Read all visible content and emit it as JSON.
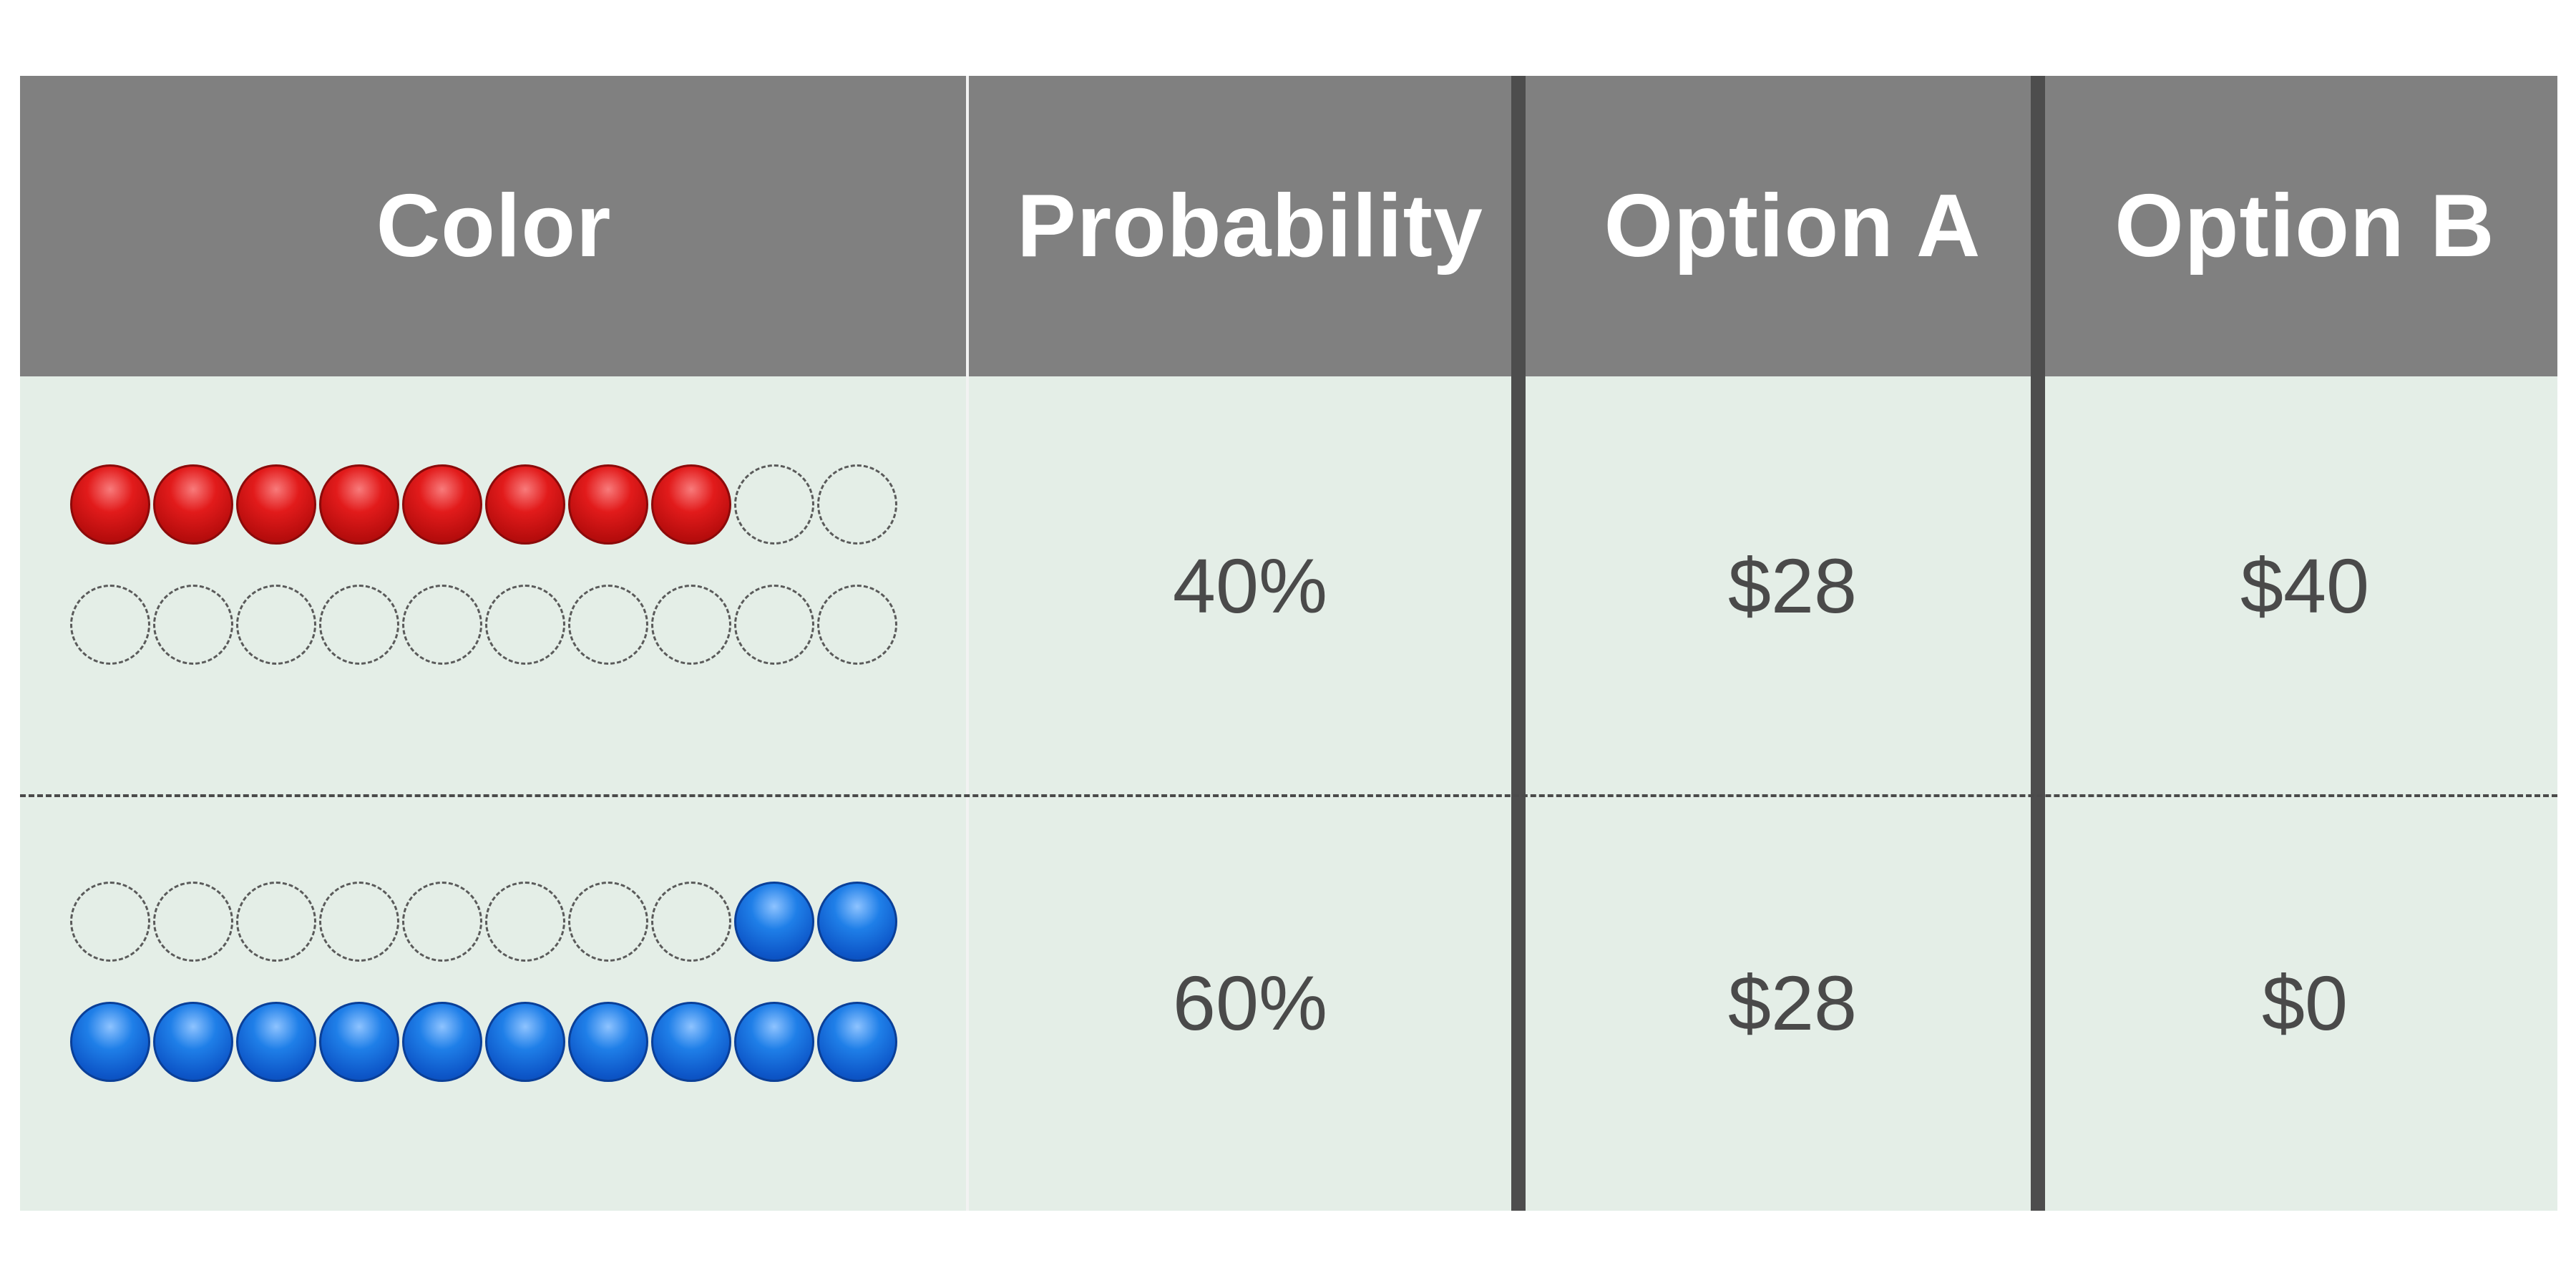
{
  "table": {
    "headers": [
      "Color",
      "Probability",
      "Option A",
      "Option B"
    ],
    "rows": [
      {
        "balls_row1": [
          "red",
          "red",
          "red",
          "red",
          "red",
          "red",
          "red",
          "red",
          "empty",
          "empty"
        ],
        "balls_row2": [
          "empty",
          "empty",
          "empty",
          "empty",
          "empty",
          "empty",
          "empty",
          "empty",
          "empty",
          "empty"
        ],
        "probability": "40%",
        "option_a": "$28",
        "option_b": "$40"
      },
      {
        "balls_row1": [
          "empty",
          "empty",
          "empty",
          "empty",
          "empty",
          "empty",
          "empty",
          "empty",
          "blue",
          "blue"
        ],
        "balls_row2": [
          "blue",
          "blue",
          "blue",
          "blue",
          "blue",
          "blue",
          "blue",
          "blue",
          "blue",
          "blue"
        ],
        "probability": "60%",
        "option_a": "$28",
        "option_b": "$0"
      }
    ]
  },
  "colors": {
    "header_bg": "#808080",
    "cell_bg": "#e4eee7",
    "red_ball": "#e21b1b",
    "blue_ball": "#1f7fe8",
    "divider": "#4d4d4d"
  }
}
